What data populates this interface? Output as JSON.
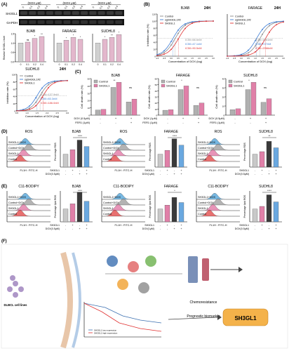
{
  "panelA": {
    "letter": "(A)",
    "groups": [
      "(DOX μM)",
      "(DOX μM)",
      "(DOX μM)"
    ],
    "doses": [
      "0",
      "0.1",
      "0.2",
      "0.4"
    ],
    "row1": "SH3GL1",
    "row2": "GAPDH",
    "ylabel": "Relative SH3GL1 level\n(Normalized to GAPDH)",
    "titles": [
      "BJAB",
      "FARAGE",
      "SUDHL8"
    ],
    "xticks": [
      "0",
      "0.1",
      "0.2",
      "0.4"
    ],
    "yticks": [
      "0.0",
      "0.5",
      "1.0",
      "1.5"
    ],
    "bars": [
      [
        1.0,
        1.05,
        1.25,
        1.35
      ],
      [
        1.0,
        1.15,
        1.3,
        1.2
      ],
      [
        1.0,
        1.2,
        1.3,
        1.45
      ]
    ],
    "sig": [
      [
        "",
        "ns",
        "*",
        "**"
      ],
      [
        "",
        "*",
        "*",
        "*"
      ],
      [
        "",
        "*",
        "**",
        "*"
      ]
    ]
  },
  "panelB": {
    "letter": "(B)",
    "time": "24H",
    "ylabel": "Inhibition rate (%)",
    "xlabel": "Concentration of DOX (log)",
    "plots": [
      {
        "title": "BJAB",
        "ic50": [
          "IC50=66.6nM",
          "IC50=47.1nM",
          "IC50=90.5nM"
        ]
      },
      {
        "title": "FARAGE",
        "ic50": [
          "IC50=1061nM",
          "IC50=727nM",
          "IC50=2066nM"
        ]
      }
    ],
    "legend": [
      "Control",
      "sgSH3GL1#2",
      "SH3GL1"
    ],
    "yticks": [
      "0",
      "20",
      "40",
      "60",
      "80",
      "100",
      "120"
    ],
    "xticks": [
      "-1.0",
      "-0.5",
      "0.0",
      "0.5",
      "1.0",
      "1.5",
      "2.0",
      "2.5",
      "3.0",
      "3.5",
      "4.0"
    ]
  },
  "panelB2": {
    "title": "SUDHL8",
    "time": "24H",
    "ylabel": "Inhibition rate (%)",
    "xlabel": "Concentration of DOX (log)",
    "legend": [
      "Control",
      "sgSH3GL1#2",
      "SH3GL1"
    ],
    "ic50": [
      "IC50=137.9nM",
      "IC50=83.3nM",
      "IC50=186.0nM"
    ],
    "yticks": [
      "0",
      "20",
      "40",
      "60",
      "80",
      "100"
    ],
    "xticks": [
      "0.5",
      "1.0",
      "1.5",
      "2.0",
      "2.5",
      "3.0"
    ]
  },
  "panelC": {
    "letter": "(C)",
    "ylabel": "Cell death rate (%)",
    "legend": [
      "Control",
      "SH3GL1"
    ],
    "plots": [
      {
        "title": "BJAB",
        "dox": "DOX (0.5μM)",
        "fer": "FER1 (1μM)",
        "control": [
          7,
          38,
          18
        ],
        "sh3gl1": [
          8,
          45,
          22
        ],
        "yticks": [
          "0",
          "10",
          "20",
          "30",
          "40",
          "50"
        ],
        "sig": [
          "**",
          "ns"
        ]
      },
      {
        "title": "FARAGE",
        "dox": "DOX (1μM)",
        "fer": "FER1 (1μM)",
        "control": [
          8,
          42,
          16
        ],
        "sh3gl1": [
          9,
          48,
          20
        ],
        "yticks": [
          "0",
          "10",
          "20",
          "30",
          "40",
          "50",
          "60"
        ],
        "sig": [
          "*",
          "ns"
        ]
      },
      {
        "title": "SUDHL8",
        "dox": "DOX (0.5μM)",
        "fer": "FER1 (1μM)",
        "control": [
          6,
          28,
          14
        ],
        "sh3gl1": [
          7,
          36,
          18
        ],
        "yticks": [
          "0",
          "10",
          "20",
          "30",
          "40"
        ],
        "sig": [
          "*",
          "ns"
        ]
      }
    ],
    "signs": [
      "-",
      "+",
      "+"
    ],
    "fsigns": [
      "-",
      "-",
      "+"
    ]
  },
  "panelD": {
    "letter": "(D)",
    "head": "ROS",
    "cells": [
      "BJAB",
      "FARAGE",
      "SUDHL8"
    ],
    "labels": [
      "SH3GL1+DOX",
      "Control+DOX",
      "SH3GL1",
      "Control"
    ],
    "xlabel": "FL1H : FITC-H",
    "ylabel": "Percentage ROS\nproduction",
    "rows": [
      "SH3GL1",
      "DOX(0.5μM)"
    ],
    "rowsF": [
      "SH3GL1",
      "DOX(1μM)"
    ],
    "signs": [
      [
        "-",
        "+",
        "-",
        "+"
      ],
      [
        "-",
        "-",
        "+",
        "+"
      ]
    ],
    "bars": [
      [
        1.0,
        1.35,
        2.1,
        1.6
      ],
      [
        1.0,
        1.3,
        2.2,
        1.7
      ],
      [
        1.0,
        1.2,
        2.0,
        1.5
      ]
    ],
    "sig": [
      "****",
      "****",
      "**"
    ]
  },
  "panelE": {
    "letter": "(E)",
    "head": "C11-BODIPY",
    "cells": [
      "BJAB",
      "FARAGE",
      "SUDHL8"
    ],
    "labels": [
      "SH3GL1+DOX",
      "Control+DOX",
      "SH3GL1",
      "Control"
    ],
    "xlabel": "FL1H : FITC-H",
    "ylabel": "Percentage lipid ROS\nproduction",
    "rows": [
      "SH3GL1",
      "DOX(0.5μM)"
    ],
    "rowsF": [
      "SH3GL1",
      "DOX(1μM)"
    ],
    "signs": [
      [
        "-",
        "+",
        "-",
        "+"
      ],
      [
        "-",
        "-",
        "+",
        "+"
      ]
    ],
    "bars": [
      [
        1.0,
        1.4,
        2.3,
        1.6
      ],
      [
        1.0,
        1.3,
        1.9,
        1.5
      ],
      [
        1.0,
        1.2,
        2.1,
        1.55
      ]
    ],
    "sig": [
      "****",
      "*",
      "****"
    ]
  },
  "panelF": {
    "letter": "(F)",
    "left": "DLBCL cell lines",
    "result": "SH3GL1",
    "labels": [
      "Chemoresistance\nBiomarker",
      "Prognostic biomarker"
    ],
    "legend": [
      "SH3GL1 low expression",
      "SH3GL1 high expression"
    ]
  },
  "colors": {
    "control": "#8a8a8a",
    "sh3gl1": "#d86fa0",
    "sg": "#3b7bd4",
    "red": "#e03030",
    "blue": "#5aa0e0",
    "gray": "#b0b0b0",
    "pink": "#e080a8",
    "result": "#f4b24a"
  }
}
